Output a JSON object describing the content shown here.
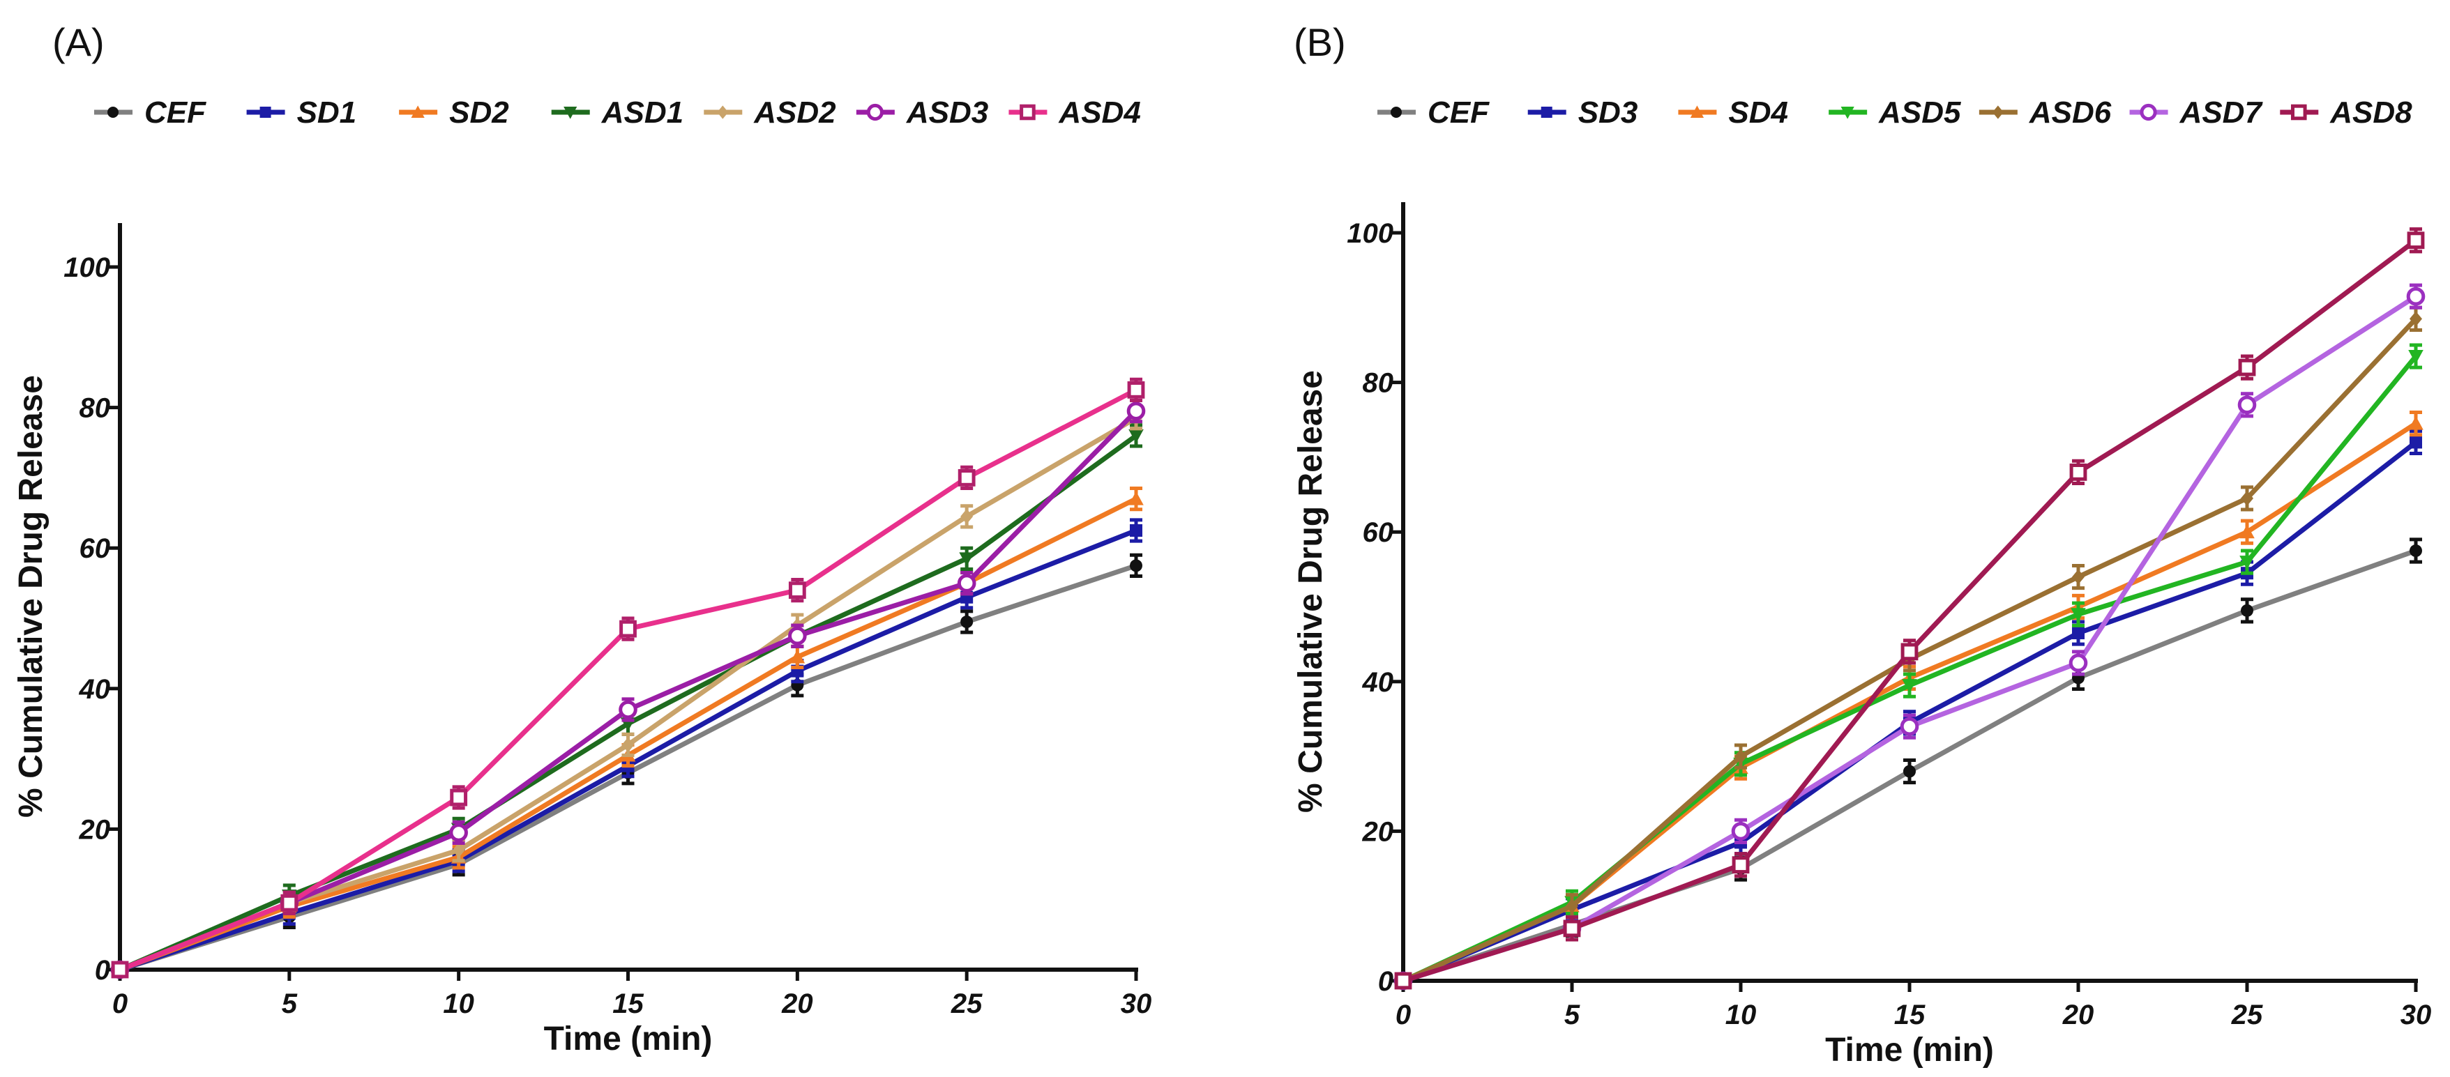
{
  "chart_data": [
    {
      "type": "line",
      "panel_label": "(A)",
      "xlabel": "Time (min)",
      "ylabel": "% Cumulative Drug Release",
      "x": [
        0,
        5,
        10,
        15,
        20,
        25,
        30
      ],
      "xticks": [
        "0",
        "5",
        "10",
        "15",
        "20",
        "25",
        "30"
      ],
      "yticks": [
        "0",
        "20",
        "40",
        "60",
        "80",
        "100"
      ],
      "xlim": [
        0,
        30
      ],
      "ylim": [
        0,
        100
      ],
      "legend_position": "top",
      "series": [
        {
          "name": "CEF",
          "color": "#808080",
          "marker_color": "#111111",
          "marker": "filled-circle",
          "values": [
            0,
            7.5,
            15,
            28,
            40.5,
            49.5,
            57.5
          ]
        },
        {
          "name": "SD1",
          "color": "#1c1ca6",
          "marker_color": "#1c1ca6",
          "marker": "filled-square",
          "values": [
            0,
            8,
            15.5,
            29,
            42.5,
            53,
            62.5
          ]
        },
        {
          "name": "SD2",
          "color": "#f07a22",
          "marker_color": "#f07a22",
          "marker": "triangle-up",
          "values": [
            0,
            9,
            16,
            30.5,
            44.5,
            55,
            67
          ]
        },
        {
          "name": "ASD1",
          "color": "#1e6b1e",
          "marker_color": "#1e6b1e",
          "marker": "triangle-down",
          "values": [
            0,
            10.5,
            20,
            35,
            47.5,
            58.5,
            76
          ]
        },
        {
          "name": "ASD2",
          "color": "#c9a36a",
          "marker_color": "#c9a36a",
          "marker": "diamond",
          "values": [
            0,
            9.5,
            17,
            32,
            49,
            64.5,
            78.5
          ]
        },
        {
          "name": "ASD3",
          "color": "#9b1ea6",
          "marker_color": "#9b1ea6",
          "marker": "open-circle",
          "values": [
            0,
            9.5,
            19.5,
            37,
            47.5,
            55,
            79.5
          ]
        },
        {
          "name": "ASD4",
          "color": "#e8308c",
          "marker_color": "#b0206a",
          "marker": "open-square",
          "values": [
            0,
            9.5,
            24.5,
            48.5,
            54,
            70,
            82.5
          ]
        }
      ]
    },
    {
      "type": "line",
      "panel_label": "(B)",
      "xlabel": "Time (min)",
      "ylabel": "% Cumulative Drug Release",
      "x": [
        0,
        5,
        10,
        15,
        20,
        25,
        30
      ],
      "xticks": [
        "0",
        "5",
        "10",
        "15",
        "20",
        "25",
        "30"
      ],
      "yticks": [
        "0",
        "20",
        "40",
        "60",
        "80",
        "100"
      ],
      "xlim": [
        0,
        30
      ],
      "ylim": [
        0,
        100
      ],
      "legend_position": "top",
      "series": [
        {
          "name": "CEF",
          "color": "#808080",
          "marker_color": "#111111",
          "marker": "filled-circle",
          "values": [
            0,
            7.5,
            15,
            28,
            40.5,
            49.5,
            57.5
          ]
        },
        {
          "name": "SD3",
          "color": "#1c1ca6",
          "marker_color": "#1c1ca6",
          "marker": "filled-square",
          "values": [
            0,
            9.5,
            18.5,
            34.5,
            46.5,
            54.5,
            72
          ]
        },
        {
          "name": "SD4",
          "color": "#f07a22",
          "marker_color": "#f07a22",
          "marker": "triangle-up",
          "values": [
            0,
            10,
            28.5,
            40.5,
            50,
            60,
            74.5
          ]
        },
        {
          "name": "ASD5",
          "color": "#22b522",
          "marker_color": "#22b522",
          "marker": "triangle-down",
          "values": [
            0,
            10.5,
            29,
            39.5,
            49,
            56,
            83.5
          ]
        },
        {
          "name": "ASD6",
          "color": "#9a7032",
          "marker_color": "#9a7032",
          "marker": "diamond",
          "values": [
            0,
            10,
            30,
            43,
            54,
            64.5,
            88.5
          ]
        },
        {
          "name": "ASD7",
          "color": "#b464e0",
          "marker_color": "#9b30c0",
          "marker": "open-circle",
          "values": [
            0,
            7,
            20,
            34,
            42.5,
            77,
            91.5
          ]
        },
        {
          "name": "ASD8",
          "color": "#a01a52",
          "marker_color": "#a01a52",
          "marker": "open-square",
          "values": [
            0,
            7,
            15.5,
            44,
            68,
            82,
            99
          ]
        }
      ]
    }
  ]
}
